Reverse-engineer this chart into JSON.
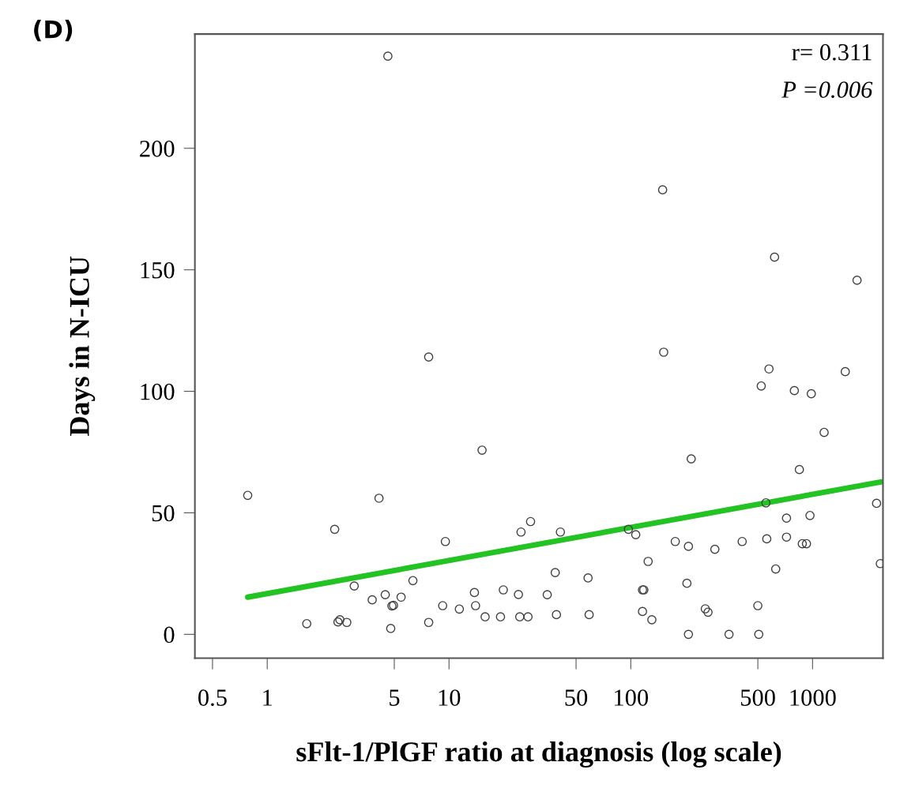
{
  "chart_data": {
    "type": "scatter",
    "title": "(D)",
    "xlabel": "sFlt-1/PlGF ratio at diagnosis (log scale)",
    "ylabel": "Days in N-ICU",
    "annotations": [
      "r= 0.311",
      "P =0.006"
    ],
    "log": "x",
    "xlim": [
      0.4,
      2440
    ],
    "xticks": [
      0.5,
      1,
      5,
      10,
      50,
      100,
      500,
      1000
    ],
    "ylim": [
      -9.8,
      247
    ],
    "yticks": [
      0,
      50,
      100,
      150,
      200
    ],
    "grid": false,
    "series": [
      {
        "marker": "circle",
        "color": "#404040",
        "x": [
          4.61,
          149.7,
          618,
          1757,
          151.7,
          0.781,
          7.73,
          15.2,
          4.12,
          2.35,
          28.1,
          24.9,
          9.55,
          6.33,
          3.01,
          4.46,
          5.45,
          3.78,
          4.85,
          4.95,
          13.8,
          19.9,
          24.1,
          9.23,
          11.4,
          14.0,
          15.8,
          19.2,
          24.5,
          27.2,
          1.65,
          2.45,
          2.51,
          2.74,
          4.78,
          7.73,
          576,
          522,
          1513,
          794,
          984,
          1158,
          215,
          846,
          2250,
          554,
          719,
          968,
          41.0,
          97.0,
          106.5,
          175.7,
          207.6,
          290,
          410,
          560,
          719,
          878,
          926,
          124.6,
          627,
          2359,
          38.4,
          58.2,
          34.7,
          116,
          118,
          203.6,
          39.0,
          59.0,
          116,
          130.6,
          257,
          266,
          500,
          207.6,
          347,
          506
        ],
        "values": [
          237.9,
          182.9,
          155.2,
          145.7,
          116.1,
          57.2,
          114.1,
          75.8,
          56.0,
          43.2,
          46.4,
          42.1,
          38.2,
          22.1,
          19.9,
          16.3,
          15.3,
          14.2,
          11.7,
          11.9,
          17.2,
          18.3,
          16.4,
          11.8,
          10.4,
          11.8,
          7.2,
          7.2,
          7.2,
          7.2,
          4.4,
          5.1,
          6.0,
          4.9,
          2.4,
          4.9,
          109.2,
          102.2,
          108.1,
          100.3,
          99.0,
          83.1,
          72.2,
          67.8,
          53.9,
          54.1,
          47.8,
          48.9,
          42.1,
          43.2,
          41.0,
          38.2,
          36.2,
          35.0,
          38.2,
          39.3,
          40.0,
          37.3,
          37.3,
          30.0,
          26.9,
          29.1,
          25.4,
          23.2,
          16.3,
          18.3,
          18.3,
          21.0,
          8.1,
          8.1,
          9.4,
          6.0,
          10.5,
          9.1,
          11.8,
          0,
          0,
          0
        ]
      },
      {
        "type": "line",
        "color": "#22c322",
        "marker": "none",
        "line_style": "solid",
        "x": [
          0.781,
          2373
        ],
        "values": [
          15.3,
          62.7
        ]
      }
    ]
  }
}
